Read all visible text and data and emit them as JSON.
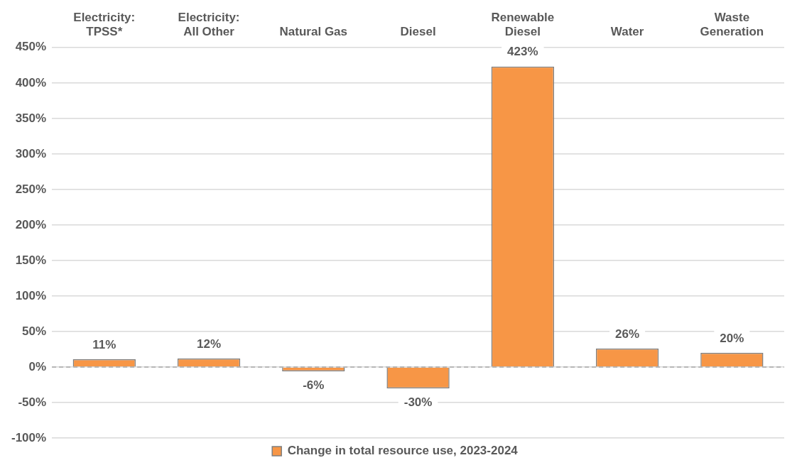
{
  "chart_data": {
    "type": "bar",
    "categories": [
      "Electricity: TPSS*",
      "Electricity: All Other",
      "Natural Gas",
      "Diesel",
      "Renewable Diesel",
      "Water",
      "Waste Generation"
    ],
    "series": [
      {
        "name": "Change in total resource use, 2023-2024",
        "color": "#f79646",
        "values": [
          11,
          12,
          -6,
          -30,
          423,
          26,
          20
        ],
        "value_labels": [
          "11%",
          "12%",
          "-6%",
          "-30%",
          "423%",
          "26%",
          "20%"
        ]
      }
    ],
    "ylim": [
      -100,
      450
    ],
    "yticks": [
      {
        "value": -100,
        "label": "-100%"
      },
      {
        "value": -50,
        "label": "-50%"
      },
      {
        "value": 0,
        "label": "0%"
      },
      {
        "value": 50,
        "label": "50%"
      },
      {
        "value": 100,
        "label": "100%"
      },
      {
        "value": 150,
        "label": "150%"
      },
      {
        "value": 200,
        "label": "200%"
      },
      {
        "value": 250,
        "label": "250%"
      },
      {
        "value": 300,
        "label": "300%"
      },
      {
        "value": 350,
        "label": "350%"
      },
      {
        "value": 400,
        "label": "400%"
      },
      {
        "value": 450,
        "label": "450%"
      }
    ],
    "ref_lines": [
      {
        "axis": "y",
        "value": 0,
        "color": "#a6a6a6",
        "line_style": "dashed"
      }
    ],
    "grid": "y",
    "legend": "bottom"
  }
}
